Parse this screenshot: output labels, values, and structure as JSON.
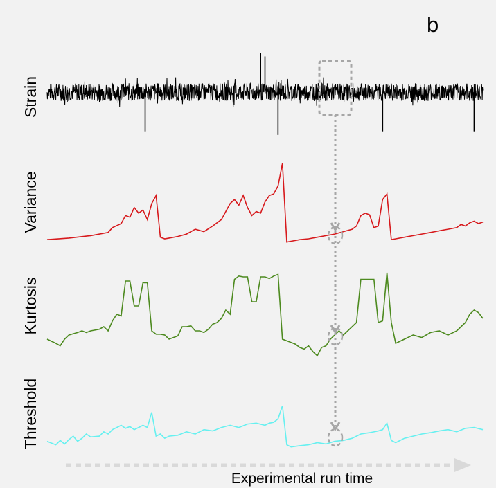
{
  "panel_label": "b",
  "colors": {
    "background": "#f2f2f2",
    "strain": "#000000",
    "variance": "#d7191c",
    "kurtosis": "#4d8a1f",
    "threshold": "#66f0f0",
    "guide": "#a6a6a6",
    "time_arrow": "#d9d9d9"
  },
  "chart_data": {
    "type": "line",
    "title": "",
    "xlabel": "Experimental run time",
    "xlim": [
      0,
      100
    ],
    "grid": false,
    "legend": "none",
    "annotation": "dashed box around strain segment at x≈66–70 linked by dotted arrow to circled points on each derived series",
    "series": [
      {
        "name": "Strain",
        "x": [
          0,
          22.5,
          49,
          50,
          53,
          77,
          98
        ],
        "values": [
          0,
          -1.1,
          1.1,
          1.0,
          -1.2,
          -1.1,
          -1.1
        ],
        "noise_band": [
          -0.25,
          0.25
        ],
        "ylim": [
          -1.3,
          1.3
        ]
      },
      {
        "name": "Variance",
        "x": [
          0,
          5,
          10,
          14,
          15,
          17,
          18,
          19,
          20,
          21,
          22,
          23,
          24,
          25,
          26,
          27,
          28,
          30,
          32,
          34,
          36,
          38,
          40,
          41,
          42,
          43,
          44,
          45,
          46,
          47,
          48,
          49,
          50,
          51,
          52,
          53,
          54,
          55,
          56,
          58,
          60,
          62,
          64,
          66,
          68,
          70,
          71,
          72,
          73,
          74,
          75,
          76,
          77,
          78,
          79,
          80,
          82,
          84,
          86,
          88,
          90,
          92,
          94,
          95,
          96,
          97,
          98,
          99,
          100
        ],
        "values": [
          0.05,
          0.07,
          0.1,
          0.14,
          0.2,
          0.25,
          0.35,
          0.33,
          0.45,
          0.38,
          0.42,
          0.3,
          0.5,
          0.6,
          0.08,
          0.06,
          0.07,
          0.09,
          0.12,
          0.18,
          0.15,
          0.22,
          0.3,
          0.4,
          0.5,
          0.55,
          0.48,
          0.6,
          0.45,
          0.35,
          0.4,
          0.38,
          0.52,
          0.6,
          0.62,
          0.72,
          1.0,
          0.02,
          0.03,
          0.05,
          0.06,
          0.08,
          0.1,
          0.12,
          0.15,
          0.18,
          0.22,
          0.35,
          0.38,
          0.36,
          0.2,
          0.22,
          0.55,
          0.62,
          0.05,
          0.06,
          0.08,
          0.1,
          0.12,
          0.14,
          0.16,
          0.18,
          0.2,
          0.24,
          0.22,
          0.26,
          0.28,
          0.25,
          0.27
        ],
        "ylim": [
          0,
          1
        ]
      },
      {
        "name": "Kurtosis",
        "x": [
          0,
          2,
          3,
          4,
          5,
          7,
          8,
          9,
          10,
          12,
          13,
          14,
          15,
          16,
          17,
          18,
          19,
          20,
          21,
          22,
          23,
          24,
          25,
          26,
          27,
          28,
          30,
          31,
          32,
          33,
          34,
          35,
          36,
          37,
          38,
          39,
          40,
          41,
          42,
          43,
          44,
          45,
          46,
          47,
          48,
          49,
          50,
          51,
          52,
          53,
          54,
          55,
          56,
          57,
          58,
          59,
          60,
          61,
          62,
          63,
          64,
          65,
          66,
          67,
          68,
          69,
          70,
          71,
          72,
          73,
          74,
          75,
          76,
          77,
          78,
          79,
          80,
          82,
          84,
          86,
          88,
          90,
          92,
          94,
          95,
          96,
          97,
          98,
          99,
          100
        ],
        "values": [
          0.2,
          0.15,
          0.12,
          0.2,
          0.25,
          0.28,
          0.3,
          0.28,
          0.3,
          0.32,
          0.35,
          0.3,
          0.42,
          0.5,
          0.48,
          0.9,
          0.9,
          0.6,
          0.6,
          0.88,
          0.88,
          0.3,
          0.26,
          0.26,
          0.25,
          0.2,
          0.24,
          0.35,
          0.35,
          0.36,
          0.3,
          0.3,
          0.28,
          0.32,
          0.38,
          0.4,
          0.45,
          0.55,
          0.5,
          0.92,
          0.96,
          0.95,
          0.95,
          0.65,
          0.65,
          0.95,
          0.95,
          0.93,
          0.96,
          0.98,
          0.2,
          0.18,
          0.16,
          0.14,
          0.1,
          0.08,
          0.12,
          0.05,
          0.0,
          0.1,
          0.12,
          0.2,
          0.25,
          0.3,
          0.25,
          0.3,
          0.35,
          0.4,
          0.92,
          0.92,
          0.92,
          0.92,
          0.4,
          0.42,
          1.0,
          0.4,
          0.15,
          0.2,
          0.25,
          0.22,
          0.28,
          0.3,
          0.25,
          0.3,
          0.35,
          0.4,
          0.5,
          0.55,
          0.52,
          0.45
        ],
        "ylim": [
          -0.05,
          1.05
        ]
      },
      {
        "name": "Threshold",
        "x": [
          0,
          2,
          3,
          4,
          5,
          6,
          7,
          8,
          9,
          10,
          12,
          13,
          14,
          15,
          16,
          17,
          18,
          19,
          20,
          21,
          22,
          23,
          24,
          25,
          26,
          27,
          28,
          30,
          32,
          34,
          36,
          38,
          40,
          42,
          44,
          46,
          48,
          50,
          51,
          52,
          53,
          54,
          55,
          56,
          58,
          60,
          62,
          64,
          66,
          68,
          70,
          71,
          72,
          74,
          76,
          77,
          78,
          79,
          80,
          82,
          84,
          86,
          88,
          90,
          92,
          94,
          96,
          98,
          100
        ],
        "values": [
          0.18,
          0.1,
          0.2,
          0.12,
          0.22,
          0.3,
          0.18,
          0.25,
          0.35,
          0.28,
          0.3,
          0.4,
          0.35,
          0.45,
          0.5,
          0.55,
          0.48,
          0.52,
          0.45,
          0.5,
          0.55,
          0.5,
          0.85,
          0.3,
          0.35,
          0.25,
          0.3,
          0.32,
          0.4,
          0.35,
          0.45,
          0.42,
          0.5,
          0.55,
          0.5,
          0.58,
          0.6,
          0.55,
          0.6,
          0.62,
          0.7,
          1.0,
          0.1,
          0.05,
          0.08,
          0.1,
          0.15,
          0.12,
          0.18,
          0.2,
          0.25,
          0.3,
          0.35,
          0.38,
          0.42,
          0.45,
          0.6,
          0.2,
          0.15,
          0.25,
          0.3,
          0.35,
          0.38,
          0.42,
          0.45,
          0.4,
          0.48,
          0.5,
          0.45
        ],
        "ylim": [
          -0.05,
          1.1
        ]
      }
    ]
  }
}
